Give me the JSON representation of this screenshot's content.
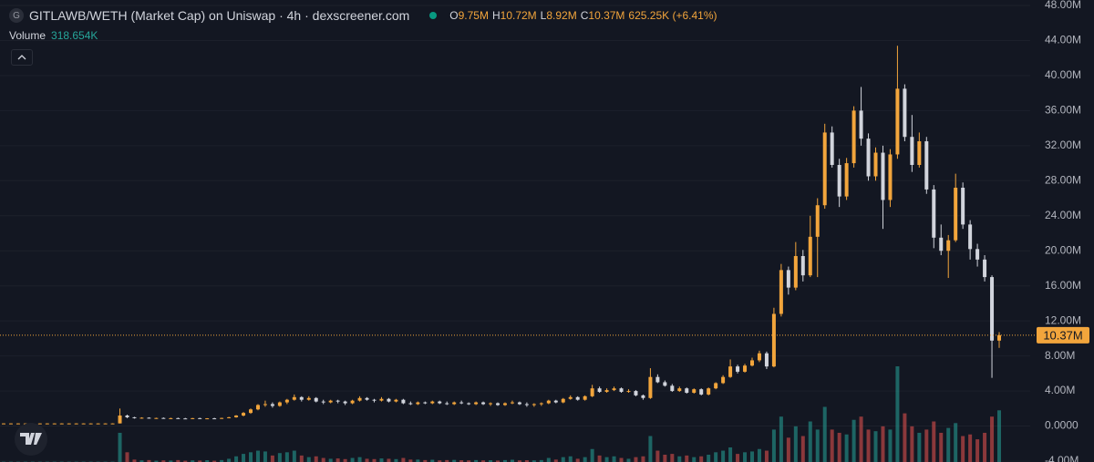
{
  "chart_data": {
    "type": "candlestick",
    "icon_letter": "G",
    "title": "GITLAWB/WETH (Market Cap) on Uniswap · 4h · dexscreener.com",
    "ohlc_legend": [
      {
        "key": "O",
        "value": "9.75M"
      },
      {
        "key": "H",
        "value": "10.72M"
      },
      {
        "key": "L",
        "value": "8.92M"
      },
      {
        "key": "C",
        "value": "10.37M"
      }
    ],
    "change": "625.25K (+6.41%)",
    "volume_label": "Volume",
    "volume_value": "318.654K",
    "up_color": "#f2a53c",
    "down_color": "#d1d4dc",
    "volume_up_color": "#26a69a",
    "volume_down_color": "#ef5350",
    "grid": true,
    "ylim": [
      -4,
      48
    ],
    "yticks": [
      {
        "value": 48,
        "label": "48.00M"
      },
      {
        "value": 44,
        "label": "44.00M"
      },
      {
        "value": 40,
        "label": "40.00M"
      },
      {
        "value": 36,
        "label": "36.00M"
      },
      {
        "value": 32,
        "label": "32.00M"
      },
      {
        "value": 28,
        "label": "28.00M"
      },
      {
        "value": 24,
        "label": "24.00M"
      },
      {
        "value": 20,
        "label": "20.00M"
      },
      {
        "value": 16,
        "label": "16.00M"
      },
      {
        "value": 12,
        "label": "12.00M"
      },
      {
        "value": 8,
        "label": "8.00M"
      },
      {
        "value": 4,
        "label": "4.00M"
      },
      {
        "value": 0,
        "label": "0.0000"
      },
      {
        "value": -4,
        "label": "-4.00M"
      }
    ],
    "last_price": {
      "value": 10.37,
      "label": "10.37M"
    },
    "open": [
      0.3,
      0.3,
      0.3,
      0.3,
      0.3,
      0.3,
      0.3,
      0.3,
      0.3,
      0.3,
      0.3,
      0.3,
      0.3,
      0.3,
      0.3,
      0.3,
      0.3,
      1.2,
      1.0,
      0.9,
      0.95,
      0.88,
      0.92,
      0.86,
      0.9,
      0.87,
      0.85,
      0.9,
      0.84,
      0.88,
      0.86,
      0.92,
      1.0,
      1.2,
      1.5,
      1.9,
      2.4,
      2.5,
      2.3,
      2.7,
      3.0,
      3.3,
      3.0,
      3.2,
      2.8,
      2.7,
      2.9,
      2.8,
      2.6,
      2.9,
      3.2,
      3.0,
      2.9,
      3.1,
      2.8,
      3.0,
      2.6,
      2.5,
      2.7,
      2.6,
      2.8,
      2.6,
      2.5,
      2.7,
      2.6,
      2.5,
      2.7,
      2.5,
      2.6,
      2.4,
      2.6,
      2.7,
      2.5,
      2.4,
      2.5,
      2.6,
      2.9,
      2.7,
      3.1,
      3.3,
      3.0,
      3.4,
      4.3,
      3.9,
      4.1,
      4.3,
      3.9,
      4.0,
      3.5,
      3.2,
      5.6,
      5.0,
      4.6,
      4.0,
      4.3,
      3.8,
      4.2,
      3.6,
      4.3,
      4.9,
      5.6,
      6.8,
      6.2,
      6.9,
      7.5,
      8.3,
      6.8,
      12.8,
      17.8,
      15.8,
      19.4,
      17.2,
      21.6,
      25.2,
      33.5,
      29.8,
      26.2,
      30.0,
      36.0,
      32.8,
      28.5,
      31.2,
      25.8,
      31.0,
      38.5,
      33.0,
      29.8,
      32.5,
      27.0,
      21.5,
      20.0,
      21.2,
      27.2,
      23.0,
      20.2,
      19.0,
      17.0,
      9.75
    ],
    "high": [
      0.32,
      0.32,
      0.32,
      0.32,
      0.32,
      0.32,
      0.32,
      0.32,
      0.32,
      0.32,
      0.32,
      0.32,
      0.32,
      0.32,
      0.32,
      0.32,
      2.0,
      1.3,
      1.05,
      1.0,
      1.0,
      0.95,
      0.98,
      0.95,
      0.96,
      0.93,
      0.92,
      0.95,
      0.9,
      0.94,
      0.95,
      1.05,
      1.25,
      1.6,
      2.0,
      2.5,
      2.9,
      2.7,
      2.8,
      3.1,
      3.6,
      3.4,
      3.4,
      3.3,
      3.0,
      3.0,
      3.0,
      2.9,
      3.0,
      3.4,
      3.3,
      3.1,
      3.3,
      3.2,
      3.1,
      3.1,
      2.8,
      2.8,
      2.8,
      2.9,
      2.9,
      2.8,
      2.8,
      2.9,
      2.7,
      2.8,
      2.8,
      2.7,
      2.7,
      2.7,
      2.9,
      2.8,
      2.7,
      2.6,
      2.7,
      3.0,
      3.0,
      3.2,
      3.5,
      3.4,
      3.5,
      4.7,
      4.5,
      4.3,
      4.5,
      4.4,
      4.2,
      4.1,
      3.6,
      6.6,
      5.9,
      5.2,
      4.8,
      4.5,
      4.4,
      4.3,
      4.3,
      4.4,
      5.0,
      5.8,
      7.6,
      7.0,
      7.1,
      7.8,
      8.6,
      8.5,
      13.5,
      18.5,
      18.2,
      21.0,
      20.1,
      24.0,
      26.0,
      34.5,
      34.2,
      30.5,
      30.6,
      36.5,
      38.7,
      33.4,
      31.8,
      32.0,
      31.6,
      43.4,
      39.0,
      35.5,
      33.5,
      33.0,
      27.5,
      23.0,
      21.8,
      28.8,
      27.8,
      23.5,
      20.8,
      19.5,
      17.2,
      10.72
    ],
    "low": [
      0.28,
      0.28,
      0.28,
      0.28,
      0.28,
      0.28,
      0.28,
      0.28,
      0.28,
      0.28,
      0.28,
      0.28,
      0.28,
      0.28,
      0.28,
      0.28,
      0.3,
      0.9,
      0.85,
      0.85,
      0.85,
      0.82,
      0.85,
      0.8,
      0.84,
      0.8,
      0.8,
      0.82,
      0.78,
      0.82,
      0.82,
      0.88,
      0.95,
      1.1,
      1.4,
      1.8,
      2.2,
      2.1,
      2.2,
      2.5,
      2.9,
      2.8,
      2.9,
      2.7,
      2.5,
      2.6,
      2.6,
      2.4,
      2.5,
      2.8,
      2.9,
      2.7,
      2.8,
      2.7,
      2.7,
      2.5,
      2.4,
      2.4,
      2.5,
      2.5,
      2.5,
      2.4,
      2.4,
      2.5,
      2.4,
      2.4,
      2.4,
      2.3,
      2.3,
      2.3,
      2.5,
      2.4,
      2.2,
      2.2,
      2.3,
      2.5,
      2.6,
      2.6,
      3.0,
      2.9,
      2.9,
      3.3,
      3.8,
      3.8,
      4.0,
      3.8,
      3.8,
      3.4,
      3.0,
      3.1,
      4.9,
      4.5,
      3.9,
      3.9,
      3.7,
      3.7,
      3.5,
      3.5,
      4.2,
      4.8,
      5.5,
      6.0,
      6.1,
      6.8,
      7.3,
      6.5,
      6.7,
      12.5,
      15.0,
      15.5,
      16.5,
      17.0,
      17.0,
      24.8,
      29.5,
      25.0,
      25.8,
      29.5,
      32.0,
      28.0,
      28.0,
      22.5,
      25.0,
      30.5,
      32.5,
      29.0,
      29.5,
      26.5,
      20.3,
      19.5,
      16.9,
      21.0,
      22.5,
      19.0,
      18.2,
      16.5,
      5.5,
      8.92
    ],
    "close": [
      0.3,
      0.3,
      0.3,
      0.3,
      0.3,
      0.3,
      0.3,
      0.3,
      0.3,
      0.3,
      0.3,
      0.3,
      0.3,
      0.3,
      0.3,
      0.3,
      1.2,
      1.0,
      0.9,
      0.95,
      0.88,
      0.92,
      0.86,
      0.9,
      0.87,
      0.85,
      0.9,
      0.84,
      0.88,
      0.86,
      0.92,
      1.0,
      1.2,
      1.5,
      1.9,
      2.4,
      2.5,
      2.3,
      2.7,
      3.0,
      3.3,
      3.0,
      3.2,
      2.8,
      2.7,
      2.9,
      2.8,
      2.6,
      2.9,
      3.2,
      3.0,
      2.9,
      3.1,
      2.8,
      3.0,
      2.6,
      2.5,
      2.7,
      2.6,
      2.8,
      2.6,
      2.5,
      2.7,
      2.6,
      2.5,
      2.7,
      2.5,
      2.6,
      2.4,
      2.6,
      2.7,
      2.5,
      2.4,
      2.5,
      2.6,
      2.9,
      2.7,
      3.1,
      3.3,
      3.0,
      3.4,
      4.3,
      3.9,
      4.1,
      4.3,
      3.9,
      4.0,
      3.5,
      3.2,
      5.6,
      5.0,
      4.6,
      4.0,
      4.3,
      3.8,
      4.2,
      3.6,
      4.3,
      4.9,
      5.6,
      6.8,
      6.2,
      6.9,
      7.5,
      8.3,
      6.8,
      12.8,
      17.8,
      15.8,
      19.4,
      17.2,
      21.6,
      25.2,
      33.5,
      29.8,
      26.2,
      30.0,
      36.0,
      32.8,
      28.5,
      31.2,
      25.8,
      31.0,
      38.5,
      33.0,
      29.8,
      32.5,
      27.0,
      21.5,
      20.0,
      21.2,
      27.2,
      23.0,
      20.2,
      19.0,
      17.0,
      9.75,
      10.37
    ],
    "volume": [
      2,
      2,
      2,
      2,
      2,
      2,
      2,
      2,
      2,
      2,
      2,
      2,
      2,
      2,
      2,
      2,
      180,
      60,
      15,
      10,
      12,
      8,
      10,
      9,
      12,
      8,
      10,
      9,
      11,
      8,
      12,
      20,
      35,
      50,
      60,
      70,
      65,
      40,
      55,
      60,
      70,
      40,
      30,
      35,
      25,
      20,
      22,
      18,
      25,
      30,
      20,
      18,
      22,
      20,
      18,
      25,
      15,
      15,
      12,
      14,
      10,
      12,
      13,
      11,
      10,
      12,
      10,
      11,
      9,
      12,
      14,
      10,
      11,
      10,
      12,
      25,
      15,
      30,
      35,
      20,
      30,
      80,
      40,
      30,
      35,
      25,
      20,
      30,
      35,
      160,
      70,
      45,
      50,
      35,
      40,
      30,
      35,
      45,
      60,
      70,
      90,
      50,
      60,
      65,
      80,
      70,
      200,
      280,
      150,
      220,
      160,
      250,
      200,
      340,
      200,
      180,
      170,
      260,
      280,
      200,
      190,
      220,
      200,
      590,
      300,
      220,
      180,
      200,
      250,
      180,
      210,
      240,
      160,
      170,
      140,
      180,
      280,
      318.654
    ]
  }
}
